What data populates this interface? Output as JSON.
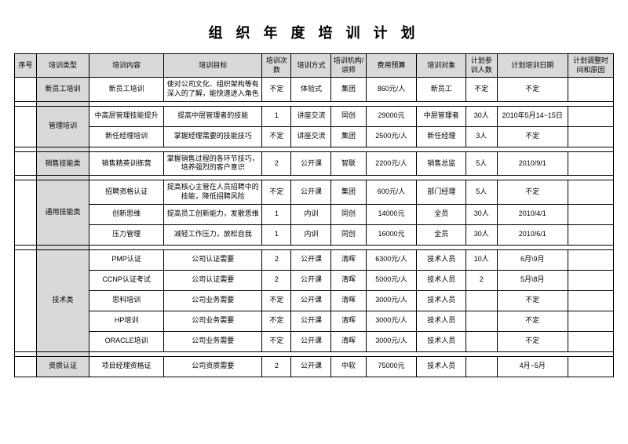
{
  "title": "组 织 年 度 培 训 计 划",
  "headers": [
    "序号",
    "培训类型",
    "培训内容",
    "培训目标",
    "培训次数",
    "培训方式",
    "培训机构/讲师",
    "费用预算",
    "培训对象",
    "计划参训人数",
    "计划培训日期",
    "计划调整时间和原因"
  ],
  "groups": [
    {
      "type": "新员工培训",
      "rows": [
        {
          "content": "新员工培训",
          "goal": "使对公司文化、组织架构等有深入的了解，能快速进入角色",
          "times": "不定",
          "method": "体验式",
          "org": "集团",
          "budget": "860元/人",
          "target": "新员工",
          "count": "不定",
          "date": "不定",
          "adjust": ""
        }
      ]
    },
    {
      "type": "管理培训",
      "rows": [
        {
          "content": "中高层管理技能提升",
          "goal": "提高中层管理者的技能",
          "times": "1",
          "method": "讲座交流",
          "org": "同创",
          "budget": "29000元",
          "target": "中层管理者",
          "count": "30人",
          "date": "2010年5月14~15日",
          "adjust": ""
        },
        {
          "content": "新任经理培训",
          "goal": "掌握经理需要的技能技巧",
          "times": "不定",
          "method": "讲座交流",
          "org": "集团",
          "budget": "2500元/人",
          "target": "新任经理",
          "count": "3人",
          "date": "不定",
          "adjust": ""
        }
      ]
    },
    {
      "type": "销售技能类",
      "rows": [
        {
          "content": "销售精英训练营",
          "goal": "掌握销售过程的各环节技巧，培养强烈的客户意识",
          "times": "2",
          "method": "公开课",
          "org": "智联",
          "budget": "2200元/人",
          "target": "销售总监",
          "count": "5人",
          "date": "2010/9/1",
          "adjust": ""
        }
      ]
    },
    {
      "type": "通用技能类",
      "rows": [
        {
          "content": "招聘资格认证",
          "goal": "提高核心主管在人员招聘中的技能，降低招聘风险",
          "times": "不定",
          "method": "公开课",
          "org": "集团",
          "budget": "600元/人",
          "target": "部门经理",
          "count": "5人",
          "date": "不定",
          "adjust": ""
        },
        {
          "content": "创新思维",
          "goal": "提高员工创新能力，发散思维",
          "times": "1",
          "method": "内训",
          "org": "同创",
          "budget": "14000元",
          "target": "全员",
          "count": "30人",
          "date": "2010/4/1",
          "adjust": ""
        },
        {
          "content": "压力管理",
          "goal": "减轻工作压力，放松自我",
          "times": "1",
          "method": "内训",
          "org": "同创",
          "budget": "16000元",
          "target": "全员",
          "count": "30人",
          "date": "2010/6/1",
          "adjust": ""
        }
      ]
    },
    {
      "type": "技术类",
      "rows": [
        {
          "content": "PMP认证",
          "goal": "公司认证需要",
          "times": "2",
          "method": "公开课",
          "org": "清晖",
          "budget": "6300元/人",
          "target": "技术人员",
          "count": "10人",
          "date": "6月\\9月",
          "adjust": ""
        },
        {
          "content": "CCNP认证考试",
          "goal": "公司认证需要",
          "times": "2",
          "method": "公开课",
          "org": "清晖",
          "budget": "5000元/人",
          "target": "技术人员",
          "count": "2",
          "date": "5月\\8月",
          "adjust": ""
        },
        {
          "content": "思科培训",
          "goal": "公司业务需要",
          "times": "不定",
          "method": "公开课",
          "org": "清晖",
          "budget": "3000元/人",
          "target": "技术人员",
          "count": "",
          "date": "不定",
          "adjust": ""
        },
        {
          "content": "HP培训",
          "goal": "公司业务需要",
          "times": "不定",
          "method": "公开课",
          "org": "清晖",
          "budget": "3000元/人",
          "target": "技术人员",
          "count": "",
          "date": "不定",
          "adjust": ""
        },
        {
          "content": "ORACLE培训",
          "goal": "公司业务需要",
          "times": "不定",
          "method": "公开课",
          "org": "清晖",
          "budget": "3000元/人",
          "target": "技术人员",
          "count": "",
          "date": "不定",
          "adjust": ""
        }
      ]
    },
    {
      "type": "资质认证",
      "rows": [
        {
          "content": "项目经理资格证",
          "goal": "公司资质需要",
          "times": "2",
          "method": "公开课",
          "org": "中软",
          "budget": "75000元",
          "target": "技术人员",
          "count": "",
          "date": "4月~5月",
          "adjust": ""
        }
      ]
    }
  ]
}
